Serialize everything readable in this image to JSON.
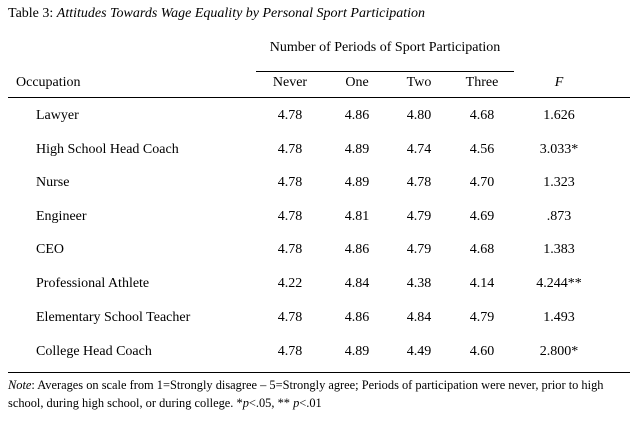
{
  "caption": {
    "prefix": "Table 3: ",
    "title": "Attitudes Towards Wage Equality by Personal Sport Participation"
  },
  "spanner": "Number of Periods of Sport Participation",
  "headers": {
    "occupation": "Occupation",
    "never": "Never",
    "one": "One",
    "two": "Two",
    "three": "Three",
    "f": "F"
  },
  "rows": [
    {
      "label": "Lawyer",
      "never": "4.78",
      "one": "4.86",
      "two": "4.80",
      "three": "4.68",
      "f": "1.626"
    },
    {
      "label": "High School Head Coach",
      "never": "4.78",
      "one": "4.89",
      "two": "4.74",
      "three": "4.56",
      "f": "3.033*"
    },
    {
      "label": "Nurse",
      "never": "4.78",
      "one": "4.89",
      "two": "4.78",
      "three": "4.70",
      "f": "1.323"
    },
    {
      "label": "Engineer",
      "never": "4.78",
      "one": "4.81",
      "two": "4.79",
      "three": "4.69",
      "f": ".873"
    },
    {
      "label": "CEO",
      "never": "4.78",
      "one": "4.86",
      "two": "4.79",
      "three": "4.68",
      "f": "1.383"
    },
    {
      "label": "Professional Athlete",
      "never": "4.22",
      "one": "4.84",
      "two": "4.38",
      "three": "4.14",
      "f": "4.244**"
    },
    {
      "label": "Elementary School Teacher",
      "never": "4.78",
      "one": "4.86",
      "two": "4.84",
      "three": "4.79",
      "f": "1.493"
    },
    {
      "label": "College Head Coach",
      "never": "4.78",
      "one": "4.89",
      "two": "4.49",
      "three": "4.60",
      "f": "2.800*"
    }
  ],
  "note": {
    "label": "Note",
    "text1": ": Averages on scale from 1=Strongly disagree – 5=Strongly agree; Periods of participation were never, prior to high school, during high school, or during college. *",
    "p1": "p",
    "text2": "<.05, ** ",
    "p2": "p",
    "text3": "<.01"
  }
}
